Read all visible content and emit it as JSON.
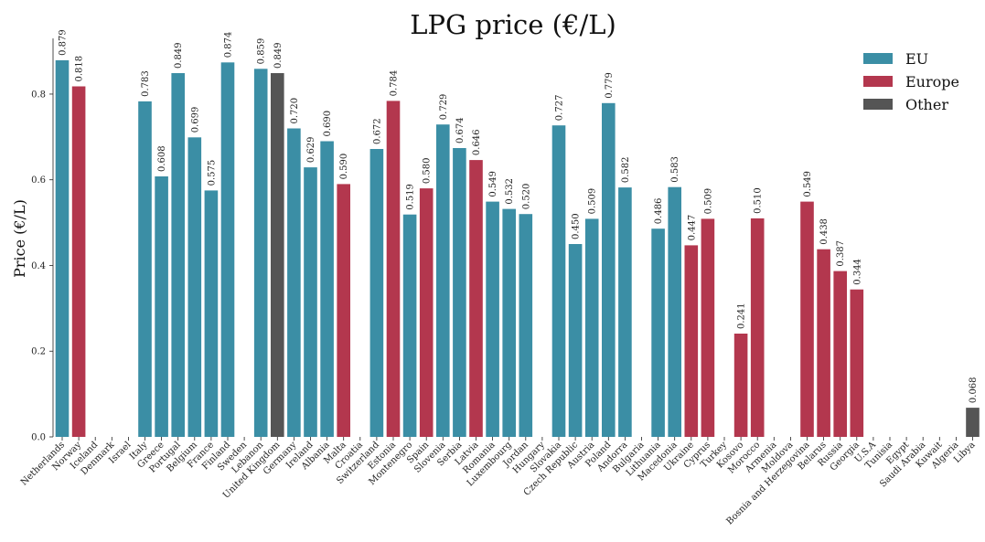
{
  "chart_data": {
    "type": "bar",
    "title": "LPG price (€/L)",
    "xlabel": "",
    "ylabel": "Price (€/L)",
    "ylim": [
      0,
      0.93
    ],
    "yticks": [
      "0.0",
      "0.2",
      "0.4",
      "0.6",
      "0.8"
    ],
    "grid": false,
    "legend_position": "top-right",
    "legend": [
      {
        "name": "EU",
        "color": "#3b8ea5"
      },
      {
        "name": "Europe",
        "color": "#b3374e"
      },
      {
        "name": "Other",
        "color": "#555555"
      }
    ],
    "categories": [
      "Netherlands",
      "Norway",
      "Iceland",
      "Denmark",
      "Israel",
      "Italy",
      "Greece",
      "Portugal",
      "Belgium",
      "France",
      "Finland",
      "Sweden",
      "Lebanon",
      "United Kingdom",
      "Germany",
      "Ireland",
      "Albania",
      "Malta",
      "Croatia",
      "Switzerland",
      "Estonia",
      "Montenegro",
      "Spain",
      "Slovenia",
      "Serbia",
      "Latvia",
      "Romania",
      "Luxembourg",
      "Jordan",
      "Hungary",
      "Slovakia",
      "Czech Republic",
      "Austria",
      "Poland",
      "Andorra",
      "Bulgaria",
      "Lithuania",
      "Macedonia",
      "Ukraine",
      "Cyprus",
      "Turkey",
      "Kosovo",
      "Morocco",
      "Armenia",
      "Moldova",
      "Bosnia and Herzegovina",
      "Belarus",
      "Russia",
      "Georgia",
      "U.S.A",
      "Tunisia",
      "Egypt",
      "Saudi Arabia",
      "Kuwait",
      "Algeria",
      "Libya"
    ],
    "values": [
      0.879,
      0.818,
      null,
      null,
      null,
      0.783,
      0.608,
      0.849,
      0.699,
      0.575,
      0.874,
      null,
      0.859,
      0.849,
      0.72,
      0.629,
      0.69,
      0.59,
      null,
      0.672,
      0.784,
      0.519,
      0.58,
      0.729,
      0.674,
      0.646,
      0.549,
      0.532,
      0.52,
      null,
      0.727,
      0.45,
      0.509,
      0.779,
      0.582,
      null,
      0.486,
      0.583,
      0.447,
      0.509,
      null,
      0.241,
      0.51,
      null,
      null,
      0.549,
      0.438,
      0.387,
      0.344,
      null,
      null,
      null,
      null,
      null,
      null,
      0.068
    ],
    "labels": [
      "0.879",
      "0.818",
      "",
      "",
      "",
      "0.783",
      "0.608",
      "0.849",
      "0.699",
      "0.575",
      "0.874",
      "",
      "0.859",
      "0.849",
      "0.720",
      "0.629",
      "0.690",
      "0.590",
      "",
      "0.672",
      "0.784",
      "0.519",
      "0.580",
      "0.729",
      "0.674",
      "0.646",
      "0.549",
      "0.532",
      "0.520",
      "",
      "0.727",
      "0.450",
      "0.509",
      "0.779",
      "0.582",
      "",
      "0.486",
      "0.583",
      "0.447",
      "0.509",
      "",
      "0.241",
      "0.510",
      "",
      "",
      "0.549",
      "0.438",
      "0.387",
      "0.344",
      "",
      "",
      "",
      "",
      "",
      "",
      "0.068"
    ],
    "groups": [
      "EU",
      "Europe",
      "",
      "",
      "Other",
      "EU",
      "EU",
      "EU",
      "EU",
      "EU",
      "EU",
      "",
      "EU",
      "Other",
      "EU",
      "EU",
      "EU",
      "Europe",
      "",
      "EU",
      "Europe",
      "EU",
      "Europe",
      "EU",
      "EU",
      "Europe",
      "EU",
      "EU",
      "EU",
      "",
      "EU",
      "EU",
      "EU",
      "EU",
      "EU",
      "",
      "EU",
      "EU",
      "Europe",
      "Europe",
      "",
      "Europe",
      "Europe",
      "",
      "",
      "Europe",
      "Europe",
      "Europe",
      "Europe",
      "",
      "",
      "",
      "",
      "",
      "",
      "Other"
    ]
  }
}
